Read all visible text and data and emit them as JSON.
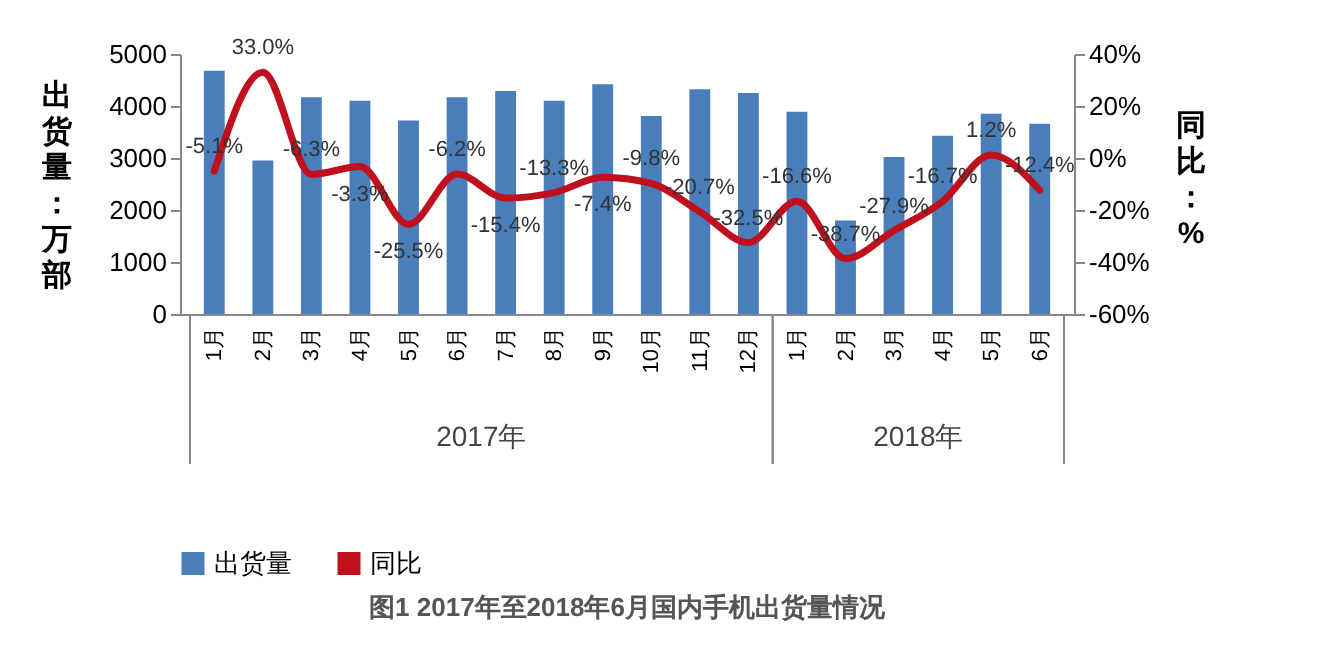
{
  "chart_data": {
    "type": "bar",
    "title": "图1  2017年至2018年6月国内手机出货量情况",
    "ylabel": "出货量：万部",
    "y2label": "同比：%",
    "categories": [
      "1月",
      "2月",
      "3月",
      "4月",
      "5月",
      "6月",
      "7月",
      "8月",
      "9月",
      "10月",
      "11月",
      "12月",
      "1月",
      "2月",
      "3月",
      "4月",
      "5月",
      "6月"
    ],
    "annotations": [
      "2017年",
      "2018年"
    ],
    "series": [
      {
        "name": "出货量",
        "type": "bar",
        "color": "#4a7ebb",
        "values": [
          4680,
          2950,
          4170,
          4100,
          3720,
          4170,
          4290,
          4100,
          4420,
          3810,
          4320,
          4250,
          3890,
          1800,
          3020,
          3430,
          3850,
          3660
        ]
      },
      {
        "name": "同比",
        "type": "line",
        "axis": "y2",
        "color": "#c0101e",
        "values": [
          -5.1,
          33.0,
          -6.3,
          -3.3,
          -25.5,
          -6.2,
          -15.4,
          -13.3,
          -7.4,
          -9.8,
          -20.7,
          -32.5,
          -16.6,
          -38.7,
          -27.9,
          -16.7,
          1.2,
          -12.4
        ],
        "value_labels": [
          "-5.1%",
          "33.0%",
          "-6.3%",
          "-3.3%",
          "-25.5%",
          "-6.2%",
          "-15.4%",
          "-13.3%",
          "-7.4%",
          "-9.8%",
          "-20.7%",
          "-32.5%",
          "-16.6%",
          "-38.7%",
          "-27.9%",
          "-16.7%",
          "1.2%",
          "-12.4%"
        ]
      }
    ],
    "ylim": [
      0,
      5000
    ],
    "yticks": [
      0,
      1000,
      2000,
      3000,
      4000,
      5000
    ],
    "y2lim": [
      -60,
      40
    ],
    "y2ticks": [
      {
        "value": -60,
        "label": "-60%"
      },
      {
        "value": -40,
        "label": "-40%"
      },
      {
        "value": -20,
        "label": "-20%"
      },
      {
        "value": 0,
        "label": "0%"
      },
      {
        "value": 20,
        "label": "20%"
      },
      {
        "value": 40,
        "label": "40%"
      }
    ],
    "grid": false,
    "legend": "bottom"
  }
}
